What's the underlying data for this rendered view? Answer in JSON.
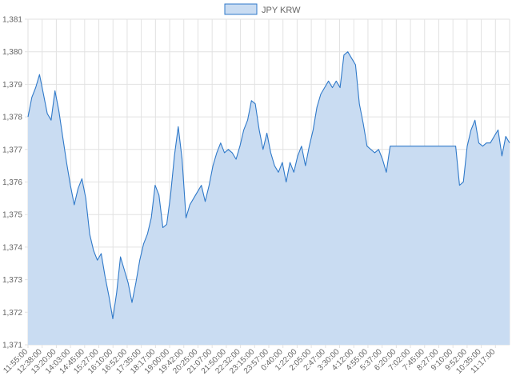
{
  "chart_data": {
    "type": "area",
    "legend": {
      "position": "top-center",
      "items": [
        {
          "label": "JPY KRW",
          "fill": "#c9dcf2",
          "stroke": "#2f79c9"
        }
      ]
    },
    "colors": {
      "line": "#2f79c9",
      "fill": "#c9dcf2",
      "grid": "#e2e2e2",
      "text": "#666666"
    },
    "grid": true,
    "ylim": [
      1371,
      1381
    ],
    "y_ticks": [
      "1,381",
      "1,380",
      "1,379",
      "1,378",
      "1,377",
      "1,376",
      "1,375",
      "1,374",
      "1,373",
      "1,372",
      "1,371"
    ],
    "x_ticks": [
      "11:55:00",
      "12:38:00",
      "13:20:00",
      "14:03:00",
      "14:45:00",
      "15:27:00",
      "16:10:00",
      "16:52:00",
      "17:35:00",
      "18:17:00",
      "19:00:00",
      "19:42:00",
      "20:25:00",
      "21:07:00",
      "21:50:00",
      "22:32:00",
      "23:15:00",
      "23:57:00",
      "0:40:00",
      "1:22:00",
      "2:05:00",
      "2:47:00",
      "3:30:00",
      "4:12:00",
      "4:55:00",
      "5:37:00",
      "6:20:00",
      "7:02:00",
      "7:45:00",
      "8:27:00",
      "9:10:00",
      "9:52:00",
      "10:35:00",
      "11:17:00"
    ],
    "series": [
      {
        "name": "JPY KRW",
        "values": [
          1378.0,
          1378.6,
          1378.9,
          1379.3,
          1378.7,
          1378.1,
          1377.9,
          1378.8,
          1378.2,
          1377.4,
          1376.6,
          1375.9,
          1375.3,
          1375.8,
          1376.1,
          1375.5,
          1374.4,
          1373.9,
          1373.6,
          1373.8,
          1373.1,
          1372.5,
          1371.8,
          1372.6,
          1373.7,
          1373.3,
          1372.9,
          1372.3,
          1372.9,
          1373.6,
          1374.1,
          1374.4,
          1374.9,
          1375.9,
          1375.6,
          1374.6,
          1374.7,
          1375.6,
          1376.8,
          1377.7,
          1376.7,
          1374.9,
          1375.3,
          1375.5,
          1375.7,
          1375.9,
          1375.4,
          1375.9,
          1376.5,
          1376.9,
          1377.2,
          1376.9,
          1377.0,
          1376.9,
          1376.7,
          1377.1,
          1377.6,
          1377.9,
          1378.5,
          1378.4,
          1377.6,
          1377.0,
          1377.5,
          1376.9,
          1376.5,
          1376.3,
          1376.6,
          1376.0,
          1376.6,
          1376.3,
          1376.8,
          1377.1,
          1376.5,
          1377.1,
          1377.6,
          1378.3,
          1378.7,
          1378.9,
          1379.1,
          1378.9,
          1379.1,
          1378.9,
          1379.9,
          1380.0,
          1379.8,
          1379.6,
          1378.4,
          1377.8,
          1377.1,
          1377.0,
          1376.9,
          1377.0,
          1376.7,
          1376.3,
          1377.1,
          1377.1,
          1377.1,
          1377.1,
          1377.1,
          1377.1,
          1377.1,
          1377.1,
          1377.1,
          1377.1,
          1377.1,
          1377.1,
          1377.1,
          1377.1,
          1377.1,
          1377.1,
          1377.1,
          1377.1,
          1375.9,
          1376.0,
          1377.1,
          1377.6,
          1377.9,
          1377.2,
          1377.1,
          1377.2,
          1377.2,
          1377.4,
          1377.6,
          1376.8,
          1377.4,
          1377.2
        ]
      }
    ]
  }
}
